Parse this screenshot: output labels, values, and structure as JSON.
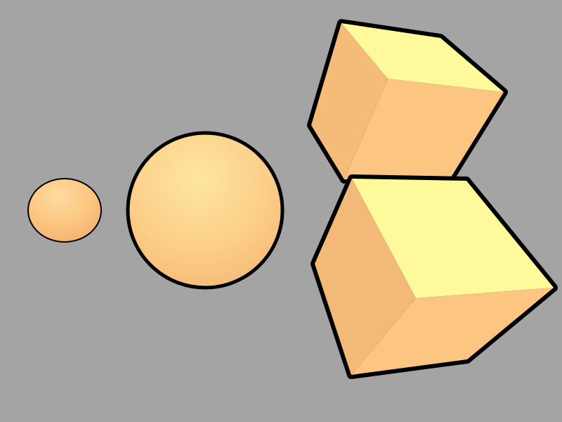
{
  "scene": {
    "background_color": "#a4a4a4",
    "outline_color": "#000000",
    "objects": [
      {
        "kind": "sphere",
        "name": "small-sphere",
        "colors": {
          "highlight": "#fedca0",
          "base": "#fbc681",
          "shadow": "#f4b06e"
        }
      },
      {
        "kind": "sphere",
        "name": "large-sphere",
        "colors": {
          "highlight": "#fde6a0",
          "base": "#fccf89",
          "shadow": "#f3b774"
        }
      },
      {
        "kind": "cube",
        "name": "upper-cube",
        "colors": {
          "top": "#fefa9c",
          "left": "#f5bb79",
          "right": "#fcc682"
        }
      },
      {
        "kind": "cube",
        "name": "lower-cube",
        "colors": {
          "top": "#fefa9c",
          "left": "#f3b978",
          "right": "#fcc682"
        }
      }
    ]
  }
}
